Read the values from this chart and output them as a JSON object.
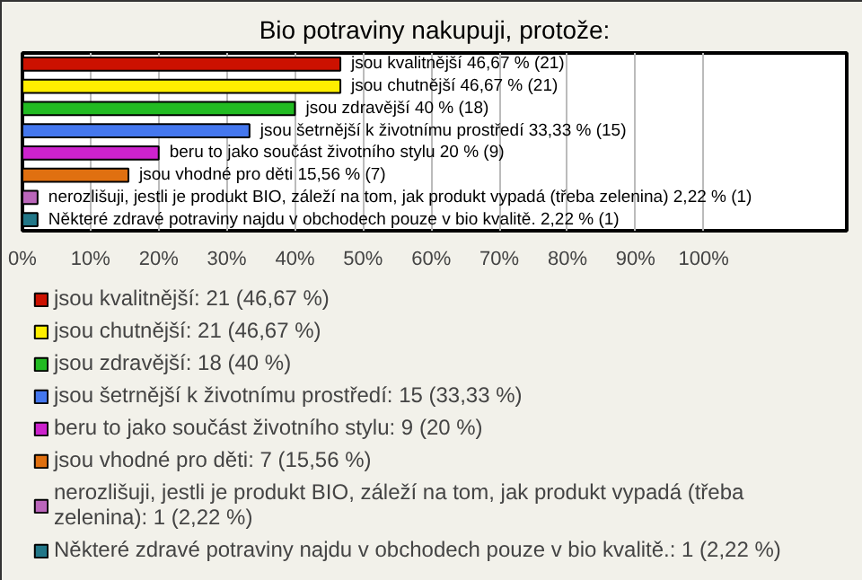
{
  "chart_data": {
    "type": "bar",
    "orientation": "horizontal",
    "title": "Bio potraviny nakupuji, protože:",
    "categories": [
      null,
      null,
      null,
      null,
      null,
      null,
      null,
      null
    ],
    "series": [
      {
        "name": "jsou kvalitnější: 21 (46,67 %)",
        "color": "#cc1100",
        "values": [
          46.67,
          null,
          null,
          null,
          null,
          null,
          null,
          null
        ]
      },
      {
        "name": "jsou chutnější: 21 (46,67 %)",
        "color": "#ffee00",
        "values": [
          null,
          46.67,
          null,
          null,
          null,
          null,
          null,
          null
        ]
      },
      {
        "name": "jsou zdravější: 18 (40 %)",
        "color": "#22bb22",
        "values": [
          null,
          null,
          40,
          null,
          null,
          null,
          null,
          null
        ]
      },
      {
        "name": "jsou šetrnější k životnímu prostředí: 15 (33,33 %)",
        "color": "#4477ee",
        "values": [
          null,
          null,
          null,
          33.33,
          null,
          null,
          null,
          null
        ]
      },
      {
        "name": "beru to jako součást životního stylu: 9 (20 %)",
        "color": "#cc22cc",
        "values": [
          null,
          null,
          null,
          null,
          20,
          null,
          null,
          null
        ]
      },
      {
        "name": "jsou vhodné pro děti: 7 (15,56 %)",
        "color": "#e07010",
        "values": [
          null,
          null,
          null,
          null,
          null,
          15.56,
          null,
          null
        ]
      },
      {
        "name": "nerozlišuji, jestli je produkt BIO, záleží na tom, jak produkt vypadá (třeba zelenina): 1 (2,22 %)",
        "color": "#bb66bb",
        "values": [
          null,
          null,
          null,
          null,
          null,
          null,
          2.22,
          null
        ]
      },
      {
        "name": "Některé zdravé potraviny najdu v obchodech pouze v bio kvalitě.: 1 (2,22 %)",
        "color": "#227788",
        "values": [
          null,
          null,
          null,
          null,
          null,
          null,
          null,
          2.22
        ]
      }
    ],
    "value_labels": [
      "jsou kvalitnější 46,67 % (21)",
      "jsou chutnější 46,67 % (21)",
      "jsou zdravější 40 % (18)",
      "jsou šetrnější k životnímu prostředí 33,33 % (15)",
      "beru to jako součást životního stylu 20 % (9)",
      "jsou vhodné pro děti 15,56 % (7)",
      "nerozlišuji, jestli je produkt BIO, záleží na tom, jak produkt vypadá (třeba zelenina) 2,22 % (1)",
      "Některé zdravé potraviny najdu v obchodech pouze v bio kvalitě. 2,22 % (1)"
    ],
    "xlim": [
      0,
      121
    ],
    "xticks": [
      {
        "value": 0,
        "label": "0%"
      },
      {
        "value": 10,
        "label": "10%"
      },
      {
        "value": 20,
        "label": "20%"
      },
      {
        "value": 30,
        "label": "30%"
      },
      {
        "value": 40,
        "label": "40%"
      },
      {
        "value": 50,
        "label": "50%"
      },
      {
        "value": 60,
        "label": "60%"
      },
      {
        "value": 70,
        "label": "70%"
      },
      {
        "value": 80,
        "label": "80%"
      },
      {
        "value": 90,
        "label": "90%"
      },
      {
        "value": 100,
        "label": "100%"
      }
    ],
    "grid": "x",
    "legend": "bottom"
  }
}
